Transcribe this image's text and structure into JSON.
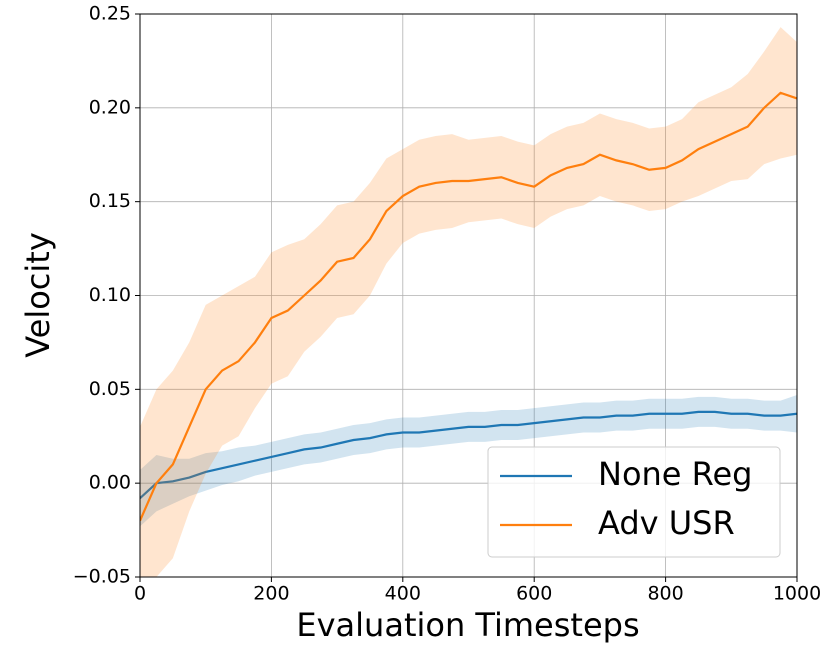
{
  "chart_data": {
    "type": "line",
    "xlabel": "Evaluation Timesteps",
    "ylabel": "Velocity",
    "x": [
      0,
      25,
      50,
      75,
      100,
      125,
      150,
      175,
      200,
      225,
      250,
      275,
      300,
      325,
      350,
      375,
      400,
      425,
      450,
      475,
      500,
      525,
      550,
      575,
      600,
      625,
      650,
      675,
      700,
      725,
      750,
      775,
      800,
      825,
      850,
      875,
      900,
      925,
      950,
      975,
      1000
    ],
    "series": [
      {
        "name": "None Reg",
        "color": "#1f77b4",
        "values": [
          -0.008,
          0,
          0.001,
          0.003,
          0.006,
          0.008,
          0.01,
          0.012,
          0.014,
          0.016,
          0.018,
          0.019,
          0.021,
          0.023,
          0.024,
          0.026,
          0.027,
          0.027,
          0.028,
          0.029,
          0.03,
          0.03,
          0.031,
          0.031,
          0.032,
          0.033,
          0.034,
          0.035,
          0.035,
          0.036,
          0.036,
          0.037,
          0.037,
          0.037,
          0.038,
          0.038,
          0.037,
          0.037,
          0.036,
          0.036,
          0.037
        ],
        "error": [
          0.015,
          0.015,
          0.012,
          0.01,
          0.01,
          0.009,
          0.009,
          0.008,
          0.008,
          0.008,
          0.008,
          0.008,
          0.008,
          0.008,
          0.008,
          0.008,
          0.008,
          0.008,
          0.008,
          0.008,
          0.008,
          0.008,
          0.008,
          0.008,
          0.008,
          0.008,
          0.008,
          0.008,
          0.008,
          0.008,
          0.008,
          0.008,
          0.008,
          0.008,
          0.008,
          0.008,
          0.008,
          0.008,
          0.008,
          0.008,
          0.01
        ]
      },
      {
        "name": "Adv USR",
        "color": "#ff7f0e",
        "values": [
          -0.02,
          0,
          0.01,
          0.03,
          0.05,
          0.06,
          0.065,
          0.075,
          0.088,
          0.092,
          0.1,
          0.108,
          0.118,
          0.12,
          0.13,
          0.145,
          0.153,
          0.158,
          0.16,
          0.161,
          0.161,
          0.162,
          0.163,
          0.16,
          0.158,
          0.164,
          0.168,
          0.17,
          0.175,
          0.172,
          0.17,
          0.167,
          0.168,
          0.172,
          0.178,
          0.182,
          0.186,
          0.19,
          0.2,
          0.208,
          0.205
        ],
        "error": [
          0.05,
          0.05,
          0.05,
          0.045,
          0.045,
          0.04,
          0.04,
          0.035,
          0.035,
          0.035,
          0.03,
          0.03,
          0.03,
          0.03,
          0.03,
          0.028,
          0.025,
          0.025,
          0.025,
          0.025,
          0.022,
          0.022,
          0.022,
          0.022,
          0.022,
          0.022,
          0.022,
          0.022,
          0.022,
          0.022,
          0.022,
          0.022,
          0.022,
          0.022,
          0.025,
          0.025,
          0.025,
          0.028,
          0.03,
          0.035,
          0.03
        ]
      }
    ],
    "xlim": [
      0,
      1000
    ],
    "ylim": [
      -0.05,
      0.25
    ],
    "xticks": [
      0,
      200,
      400,
      600,
      800,
      1000
    ],
    "yticks": [
      {
        "value": -0.05,
        "label": "−0.05"
      },
      {
        "value": 0,
        "label": "0.00"
      },
      {
        "value": 0.05,
        "label": "0.05"
      },
      {
        "value": 0.1,
        "label": "0.10"
      },
      {
        "value": 0.15,
        "label": "0.15"
      },
      {
        "value": 0.2,
        "label": "0.20"
      },
      {
        "value": 0.25,
        "label": "0.25"
      }
    ],
    "grid": true,
    "legend": "lower right"
  }
}
